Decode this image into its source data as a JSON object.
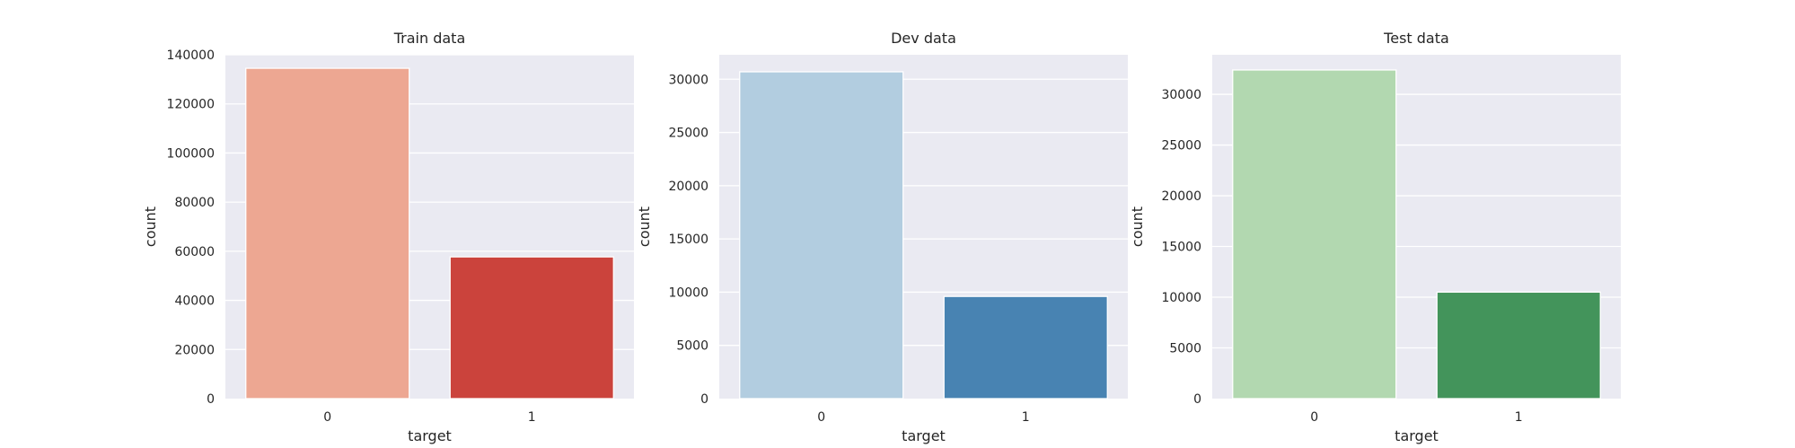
{
  "figure": {
    "background": "#ffffff",
    "axes_face": "#eaeaf2",
    "grid_color": "#ffffff",
    "text_color": "#262626"
  },
  "chart_data": [
    {
      "type": "bar",
      "title": "Train data",
      "xlabel": "target",
      "ylabel": "count",
      "categories": [
        "0",
        "1"
      ],
      "values": [
        134500,
        57700
      ],
      "colors": [
        "#eda792",
        "#cb433c"
      ],
      "ylim": [
        0,
        140000
      ],
      "yticks": [
        0,
        20000,
        40000,
        60000,
        80000,
        100000,
        120000,
        140000
      ],
      "grid": true
    },
    {
      "type": "bar",
      "title": "Dev data",
      "xlabel": "target",
      "ylabel": "count",
      "categories": [
        "0",
        "1"
      ],
      "values": [
        30700,
        9600
      ],
      "colors": [
        "#b2cde0",
        "#4883b2"
      ],
      "ylim": [
        0,
        32300
      ],
      "yticks": [
        0,
        5000,
        10000,
        15000,
        20000,
        25000,
        30000
      ],
      "grid": true
    },
    {
      "type": "bar",
      "title": "Test data",
      "xlabel": "target",
      "ylabel": "count",
      "categories": [
        "0",
        "1"
      ],
      "values": [
        32400,
        10500
      ],
      "colors": [
        "#b2d8b0",
        "#43945b"
      ],
      "ylim": [
        0,
        33900
      ],
      "yticks": [
        0,
        5000,
        10000,
        15000,
        20000,
        25000,
        30000
      ],
      "grid": true
    }
  ]
}
